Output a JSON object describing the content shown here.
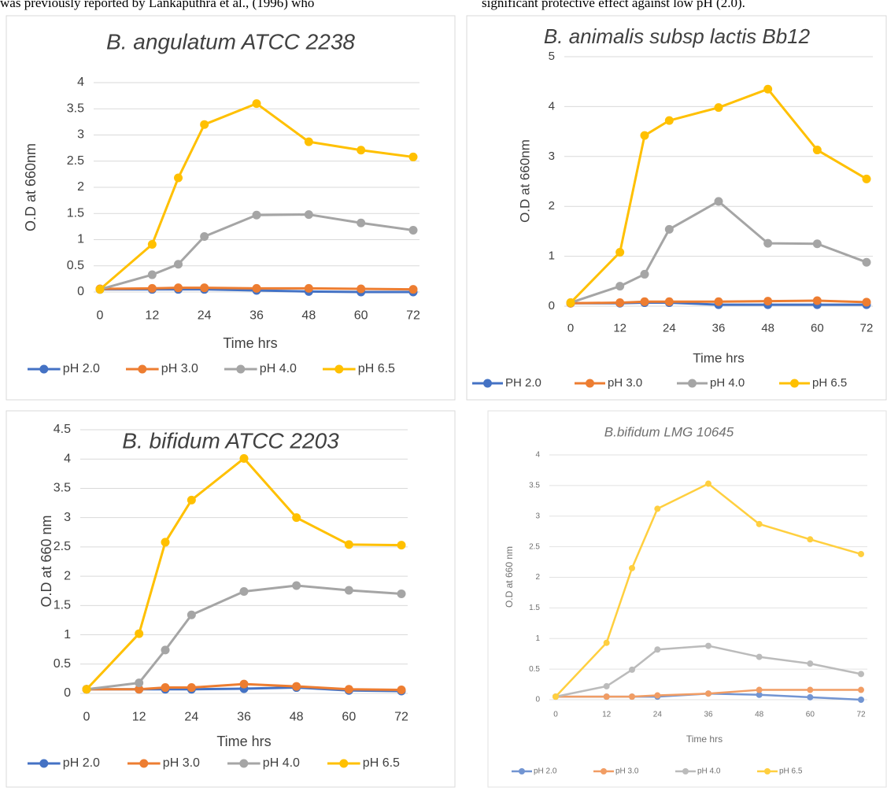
{
  "page_text": {
    "left": "was previously reported by Lankaputhra et al., (1996) who",
    "right": "significant protective effect against low pH (2.0)."
  },
  "chart_data": [
    {
      "type": "line",
      "title": "B. angulatum ATCC 2238",
      "x_label": "Time hrs",
      "y_label": "O.D at 660nm",
      "x": [
        0,
        12,
        18,
        24,
        36,
        48,
        60,
        72
      ],
      "xlim": [
        0,
        72
      ],
      "xticks": [
        0,
        12,
        24,
        36,
        48,
        60,
        72
      ],
      "ylim": [
        0,
        4
      ],
      "yticks": [
        0,
        0.5,
        1,
        1.5,
        2,
        2.5,
        3,
        3.5,
        4
      ],
      "grid": true,
      "legend": "bottom",
      "series": [
        {
          "name": "pH 2.0",
          "color": "#4472c4",
          "values": [
            0.05,
            0.05,
            0.05,
            0.05,
            0.03,
            0.01,
            0.0,
            0.0
          ]
        },
        {
          "name": "pH 3.0",
          "color": "#ed7d31",
          "values": [
            0.06,
            0.07,
            0.08,
            0.08,
            0.07,
            0.07,
            0.06,
            0.05
          ]
        },
        {
          "name": "pH 4.0",
          "color": "#a5a5a5",
          "values": [
            0.05,
            0.33,
            0.53,
            1.06,
            1.47,
            1.48,
            1.32,
            1.18
          ]
        },
        {
          "name": "pH 6.5",
          "color": "#ffc000",
          "values": [
            0.05,
            0.91,
            2.18,
            3.2,
            3.6,
            2.87,
            2.71,
            2.58
          ]
        }
      ]
    },
    {
      "type": "line",
      "title": "B. animalis subsp lactis Bb12",
      "x_label": "Time hrs",
      "y_label": "O.D at 660nm",
      "x": [
        0,
        12,
        18,
        24,
        36,
        48,
        60,
        72
      ],
      "xlim": [
        0,
        72
      ],
      "xticks": [
        0,
        12,
        24,
        36,
        48,
        60,
        72
      ],
      "ylim": [
        0,
        5
      ],
      "yticks": [
        0,
        1,
        2,
        3,
        4,
        5
      ],
      "grid": true,
      "legend": "bottom",
      "series": [
        {
          "name": "PH 2.0",
          "color": "#4472c4",
          "values": [
            0.06,
            0.06,
            0.07,
            0.07,
            0.03,
            0.03,
            0.03,
            0.03
          ]
        },
        {
          "name": "pH 3.0",
          "color": "#ed7d31",
          "values": [
            0.06,
            0.07,
            0.09,
            0.09,
            0.09,
            0.1,
            0.11,
            0.08
          ]
        },
        {
          "name": "pH 4.0",
          "color": "#a5a5a5",
          "values": [
            0.07,
            0.4,
            0.64,
            1.54,
            2.1,
            1.26,
            1.25,
            0.88
          ]
        },
        {
          "name": "pH 6.5",
          "color": "#ffc000",
          "values": [
            0.07,
            1.08,
            3.42,
            3.72,
            3.98,
            4.35,
            3.13,
            2.55
          ]
        }
      ]
    },
    {
      "type": "line",
      "title": "B. bifidum ATCC 2203",
      "x_label": "Time hrs",
      "y_label": "O.D at 660 nm",
      "x": [
        0,
        12,
        18,
        24,
        36,
        48,
        60,
        72
      ],
      "xlim": [
        0,
        72
      ],
      "xticks": [
        0,
        12,
        24,
        36,
        48,
        60,
        72
      ],
      "ylim": [
        0,
        4.5
      ],
      "yticks": [
        0,
        0.5,
        1,
        1.5,
        2,
        2.5,
        3,
        3.5,
        4,
        4.5
      ],
      "grid": true,
      "legend": "bottom",
      "series": [
        {
          "name": "pH 2.0",
          "color": "#4472c4",
          "values": [
            0.07,
            0.07,
            0.07,
            0.07,
            0.08,
            0.1,
            0.05,
            0.04
          ]
        },
        {
          "name": "pH 3.0",
          "color": "#ed7d31",
          "values": [
            0.07,
            0.07,
            0.1,
            0.1,
            0.16,
            0.12,
            0.07,
            0.06
          ]
        },
        {
          "name": "pH 4.0",
          "color": "#a5a5a5",
          "values": [
            0.07,
            0.18,
            0.74,
            1.34,
            1.74,
            1.84,
            1.76,
            1.7
          ]
        },
        {
          "name": "pH 6.5",
          "color": "#ffc000",
          "values": [
            0.07,
            1.02,
            2.58,
            3.3,
            4.01,
            3.0,
            2.54,
            2.53
          ]
        }
      ]
    },
    {
      "type": "line",
      "title": "B.bifidum LMG 10645",
      "x_label": "Time hrs",
      "y_label": "O.D at 660 nm",
      "x": [
        0,
        12,
        18,
        24,
        36,
        48,
        60,
        72
      ],
      "xlim": [
        0,
        72
      ],
      "xticks": [
        0,
        12,
        24,
        36,
        48,
        60,
        72
      ],
      "ylim": [
        0,
        4
      ],
      "yticks": [
        0,
        0.5,
        1,
        1.5,
        2,
        2.5,
        3,
        3.5,
        4
      ],
      "grid": true,
      "legend": "bottom",
      "series": [
        {
          "name": "pH 2.0",
          "color": "#4472c4",
          "values": [
            0.05,
            0.05,
            0.05,
            0.05,
            0.1,
            0.08,
            0.04,
            0.0
          ]
        },
        {
          "name": "pH 3.0",
          "color": "#ed7d31",
          "values": [
            0.05,
            0.05,
            0.05,
            0.07,
            0.1,
            0.16,
            0.16,
            0.16
          ]
        },
        {
          "name": "pH 4.0",
          "color": "#a5a5a5",
          "values": [
            0.05,
            0.22,
            0.49,
            0.82,
            0.88,
            0.7,
            0.59,
            0.42
          ]
        },
        {
          "name": "pH 6.5",
          "color": "#ffc000",
          "values": [
            0.05,
            0.93,
            2.15,
            3.12,
            3.53,
            2.87,
            2.62,
            2.38
          ]
        }
      ]
    }
  ]
}
